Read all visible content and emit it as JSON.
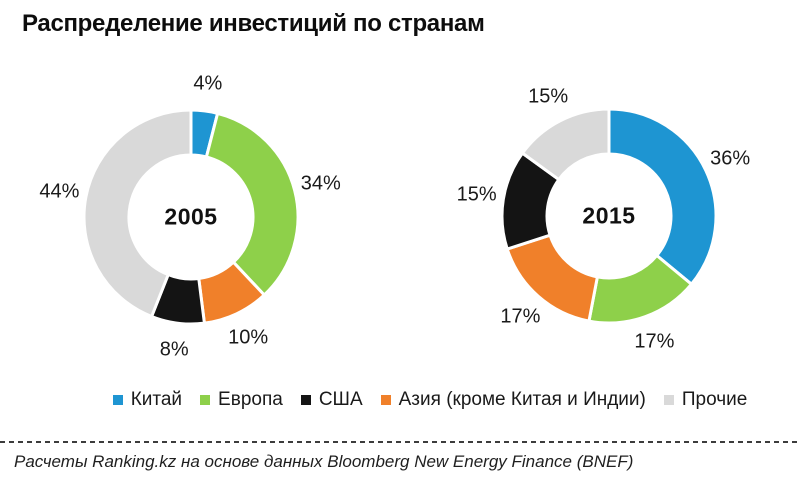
{
  "title": "Распределение инвестиций по странам",
  "footer": "Расчеты Ranking.kz на основе данных Bloomberg  New Energy Finance (BNEF)",
  "colors": {
    "china": "#1e95d2",
    "europe": "#8ed04a",
    "asia": "#f0802a",
    "usa": "#141414",
    "others": "#d9d9d9",
    "label_text": "#1a1a1a"
  },
  "chart_data": [
    {
      "type": "pie",
      "subtype": "donut",
      "title": "2005",
      "unit": "%",
      "legend_position": "bottom",
      "segments": [
        {
          "key": "china",
          "label": "Китай",
          "value": 4,
          "color": "#1e95d2"
        },
        {
          "key": "europe",
          "label": "Европа",
          "value": 34,
          "color": "#8ed04a"
        },
        {
          "key": "asia",
          "label": "Азия (кроме Китая и Индии)",
          "value": 10,
          "color": "#f0802a"
        },
        {
          "key": "usa",
          "label": "США",
          "value": 8,
          "color": "#141414"
        },
        {
          "key": "others",
          "label": "Прочие",
          "value": 44,
          "color": "#d9d9d9"
        }
      ]
    },
    {
      "type": "pie",
      "subtype": "donut",
      "title": "2015",
      "unit": "%",
      "legend_position": "bottom",
      "segments": [
        {
          "key": "china",
          "label": "Китай",
          "value": 36,
          "color": "#1e95d2"
        },
        {
          "key": "europe",
          "label": "Европа",
          "value": 17,
          "color": "#8ed04a"
        },
        {
          "key": "asia",
          "label": "Азия (кроме Китая и Индии)",
          "value": 17,
          "color": "#f0802a"
        },
        {
          "key": "usa",
          "label": "США",
          "value": 15,
          "color": "#141414"
        },
        {
          "key": "others",
          "label": "Прочие",
          "value": 15,
          "color": "#d9d9d9"
        }
      ]
    }
  ],
  "legend": {
    "items": [
      {
        "key": "china",
        "label": "Китай",
        "color": "#1e95d2"
      },
      {
        "key": "europe",
        "label": "Европа",
        "color": "#8ed04a"
      },
      {
        "key": "usa",
        "label": "США",
        "color": "#141414"
      },
      {
        "key": "asia",
        "label": "Азия (кроме Китая и Индии)",
        "color": "#f0802a"
      },
      {
        "key": "others",
        "label": "Прочие",
        "color": "#d9d9d9"
      }
    ]
  }
}
